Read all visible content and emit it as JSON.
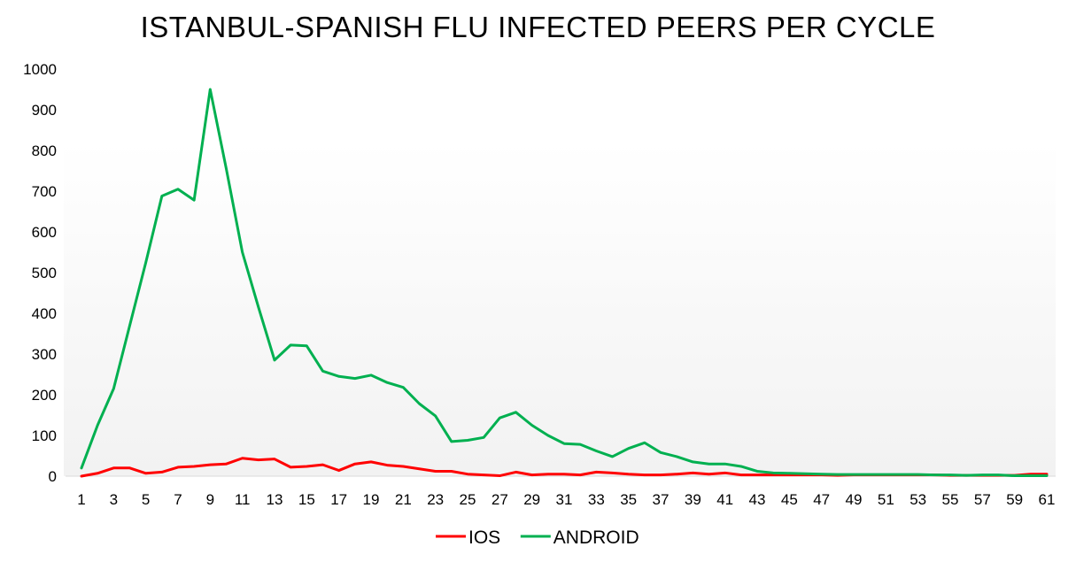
{
  "chart_data": {
    "type": "line",
    "title": "ISTANBUL-SPANISH FLU INFECTED PEERS PER CYCLE",
    "xlabel": "",
    "ylabel": "",
    "ylim": [
      0,
      1000
    ],
    "yticks": [
      0,
      100,
      200,
      300,
      400,
      500,
      600,
      700,
      800,
      900,
      1000
    ],
    "xticks": [
      1,
      3,
      5,
      7,
      9,
      11,
      13,
      15,
      17,
      19,
      21,
      23,
      25,
      27,
      29,
      31,
      33,
      35,
      37,
      39,
      41,
      43,
      45,
      47,
      49,
      51,
      53,
      55,
      57,
      59,
      61
    ],
    "x": [
      1,
      2,
      3,
      4,
      5,
      6,
      7,
      8,
      9,
      10,
      11,
      12,
      13,
      14,
      15,
      16,
      17,
      18,
      19,
      20,
      21,
      22,
      23,
      24,
      25,
      26,
      27,
      28,
      29,
      30,
      31,
      32,
      33,
      34,
      35,
      36,
      37,
      38,
      39,
      40,
      41,
      42,
      43,
      44,
      45,
      46,
      47,
      48,
      49,
      50,
      51,
      52,
      53,
      54,
      55,
      56,
      57,
      58,
      59,
      60,
      61
    ],
    "grid": false,
    "legend_position": "bottom",
    "series": [
      {
        "name": "IOS",
        "color": "#ff0000",
        "values": [
          0,
          7,
          20,
          20,
          7,
          10,
          22,
          24,
          28,
          30,
          44,
          40,
          42,
          22,
          24,
          28,
          14,
          30,
          35,
          27,
          24,
          18,
          12,
          12,
          5,
          3,
          1,
          10,
          3,
          5,
          5,
          3,
          10,
          8,
          5,
          3,
          3,
          5,
          8,
          5,
          8,
          3,
          3,
          3,
          3,
          3,
          3,
          2,
          3,
          3,
          3,
          3,
          3,
          3,
          2,
          2,
          2,
          2,
          2,
          5,
          5
        ]
      },
      {
        "name": "ANDROID",
        "color": "#00b050",
        "values": [
          20,
          125,
          215,
          370,
          525,
          688,
          705,
          678,
          950,
          755,
          550,
          415,
          285,
          322,
          320,
          258,
          245,
          240,
          248,
          230,
          218,
          178,
          148,
          85,
          88,
          95,
          143,
          157,
          125,
          100,
          80,
          78,
          62,
          48,
          68,
          82,
          58,
          48,
          35,
          30,
          30,
          24,
          12,
          8,
          7,
          6,
          5,
          4,
          4,
          4,
          4,
          4,
          4,
          3,
          3,
          2,
          3,
          3,
          1,
          1,
          1
        ]
      }
    ]
  }
}
